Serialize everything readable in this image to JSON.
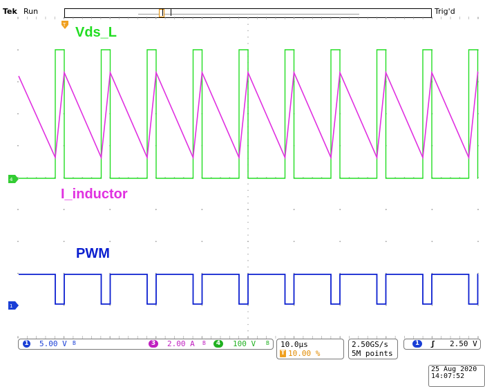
{
  "header": {
    "brand": "Tek",
    "state": "Run",
    "trigger_status": "Trig'd"
  },
  "traces": {
    "vds": {
      "label": "Vds_L",
      "color": "#22dd22"
    },
    "inductor": {
      "label": "I_inductor",
      "color": "#e030e0"
    },
    "pwm": {
      "label": "PWM",
      "color": "#0a1ecf"
    }
  },
  "markers": {
    "trigger_position": "T",
    "ch4_ground": "4",
    "ch1_ground": "1"
  },
  "channels": {
    "ch1": {
      "number": "1",
      "scale": "5.00 V",
      "bw": "B",
      "color": "#1a3fd6"
    },
    "ch3": {
      "number": "3",
      "scale": "2.00 A",
      "bw": "B",
      "color": "#c020c0"
    },
    "ch4": {
      "number": "4",
      "scale": "100 V",
      "bw": "B",
      "color": "#20b020"
    }
  },
  "timebase": {
    "scale": "10.0µs",
    "trigger_marker": "T",
    "position": "10.00 %"
  },
  "acquisition": {
    "rate": "2.50GS/s",
    "record_length": "5M points"
  },
  "trigger": {
    "source": "1",
    "slope": "ʃ",
    "level": "2.50 V"
  },
  "datetime": {
    "date": "25 Aug 2020",
    "time": "14:07:52"
  }
}
